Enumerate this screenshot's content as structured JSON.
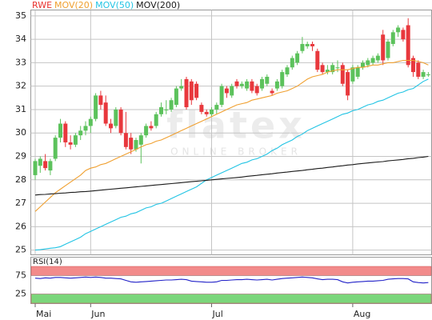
{
  "chart_data": [
    {
      "type": "candlestick",
      "watermark": {
        "title": "flatex",
        "subtitle": "ONLINE BROKER"
      },
      "categories": [
        "Mai",
        null,
        null,
        null,
        null,
        null,
        null,
        null,
        null,
        null,
        null,
        "Jun",
        null,
        null,
        null,
        null,
        null,
        null,
        null,
        null,
        null,
        null,
        null,
        null,
        null,
        null,
        null,
        null,
        null,
        null,
        null,
        null,
        null,
        null,
        null,
        "Jul",
        null,
        null,
        null,
        null,
        null,
        null,
        null,
        null,
        null,
        null,
        null,
        null,
        null,
        null,
        null,
        null,
        null,
        null,
        null,
        null,
        null,
        null,
        null,
        null,
        null,
        null,
        null,
        "Aug",
        null,
        null,
        null,
        null,
        null,
        null,
        null,
        null,
        null,
        null,
        null,
        null,
        null,
        null,
        null
      ],
      "candles": {
        "name": "RWE",
        "color": "#e8322d",
        "up_color": "#5cc25c",
        "down_color": "#e8383d",
        "open": [
          28.2,
          28.6,
          28.8,
          28.4,
          28.9,
          29.8,
          30.4,
          29.6,
          29.5,
          29.9,
          30.1,
          30.3,
          30.6,
          31.6,
          31.3,
          30.4,
          30.3,
          31.0,
          30.0,
          29.8,
          29.3,
          29.5,
          29.9,
          30.3,
          30.3,
          30.8,
          31.0,
          31.0,
          31.2,
          31.9,
          32.3,
          32.2,
          32.1,
          31.2,
          30.9,
          30.8,
          31.0,
          31.2,
          31.9,
          31.6,
          32.2,
          32.0,
          31.9,
          32.2,
          32.0,
          31.9,
          32.1,
          31.8,
          31.9,
          32.0,
          32.5,
          32.8,
          33.0,
          33.5,
          33.7,
          33.8,
          33.5,
          32.9,
          32.6,
          32.6,
          32.8,
          32.9,
          32.6,
          32.2,
          32.4,
          32.8,
          32.9,
          33.0,
          33.1,
          34.2,
          33.2,
          33.8,
          34.3,
          34.4,
          34.6,
          33.2,
          33.0,
          32.4,
          32.5
        ],
        "high": [
          28.9,
          29.0,
          29.1,
          28.9,
          29.9,
          30.6,
          30.5,
          29.9,
          30.0,
          30.3,
          30.5,
          30.7,
          31.7,
          31.8,
          31.6,
          30.6,
          31.1,
          31.1,
          30.9,
          30.0,
          29.8,
          30.0,
          30.4,
          30.5,
          30.9,
          31.3,
          31.4,
          31.5,
          32.0,
          32.3,
          32.4,
          32.3,
          32.2,
          31.3,
          31.0,
          31.1,
          31.3,
          32.1,
          32.0,
          32.1,
          32.3,
          32.2,
          32.3,
          32.3,
          32.1,
          32.4,
          32.5,
          31.9,
          32.3,
          32.7,
          32.9,
          33.3,
          33.5,
          34.1,
          33.9,
          33.9,
          33.6,
          33.0,
          32.9,
          33.0,
          33.1,
          33.0,
          32.7,
          32.9,
          32.9,
          33.1,
          33.2,
          33.3,
          33.4,
          34.4,
          34.0,
          34.4,
          34.6,
          34.5,
          34.9,
          33.3,
          33.1,
          32.7,
          32.6
        ],
        "low": [
          28.0,
          28.3,
          28.4,
          28.2,
          28.8,
          29.6,
          29.4,
          29.3,
          29.4,
          29.7,
          29.9,
          30.0,
          30.5,
          31.0,
          30.3,
          30.0,
          30.2,
          29.9,
          29.3,
          29.1,
          29.2,
          28.7,
          29.8,
          30.1,
          30.2,
          30.7,
          30.8,
          30.9,
          31.1,
          31.8,
          31.0,
          31.2,
          31.4,
          30.8,
          30.7,
          30.7,
          30.8,
          31.1,
          31.5,
          31.5,
          31.9,
          31.9,
          31.8,
          31.7,
          31.6,
          31.8,
          32.0,
          31.6,
          31.8,
          31.9,
          32.4,
          32.7,
          32.9,
          33.4,
          33.6,
          33.5,
          32.6,
          32.5,
          32.5,
          32.5,
          32.6,
          32.0,
          31.4,
          32.1,
          32.3,
          32.7,
          32.8,
          32.9,
          33.0,
          32.9,
          33.1,
          33.7,
          34.1,
          33.9,
          32.8,
          32.4,
          32.3,
          32.3,
          32.4
        ],
        "close": [
          28.8,
          28.9,
          28.5,
          28.8,
          29.8,
          30.4,
          29.6,
          29.5,
          29.9,
          30.1,
          30.3,
          30.6,
          31.6,
          31.2,
          30.4,
          30.2,
          31.0,
          30.0,
          29.4,
          29.3,
          29.7,
          29.9,
          30.3,
          30.2,
          30.8,
          31.1,
          31.0,
          31.4,
          31.9,
          32.0,
          31.1,
          31.4,
          31.5,
          30.9,
          30.8,
          31.0,
          31.2,
          32.0,
          31.7,
          32.0,
          32.0,
          32.1,
          32.2,
          31.8,
          31.7,
          32.3,
          32.4,
          31.7,
          32.2,
          32.6,
          32.8,
          33.2,
          33.4,
          33.8,
          33.8,
          33.7,
          32.7,
          32.6,
          32.7,
          32.9,
          32.8,
          32.1,
          31.6,
          32.8,
          32.8,
          33.0,
          33.1,
          33.2,
          33.3,
          33.1,
          33.9,
          34.3,
          34.5,
          34.0,
          32.9,
          32.6,
          32.4,
          32.6,
          32.5
        ]
      },
      "series": [
        {
          "name": "MOV(20)",
          "color": "#f0a030",
          "values": [
            26.65,
            26.85,
            27.05,
            27.25,
            27.45,
            27.6,
            27.75,
            27.9,
            28.05,
            28.2,
            28.4,
            28.5,
            28.55,
            28.65,
            28.7,
            28.8,
            28.9,
            29.0,
            29.1,
            29.2,
            29.3,
            29.4,
            29.5,
            29.55,
            29.65,
            29.7,
            29.8,
            29.9,
            30.0,
            30.1,
            30.2,
            30.3,
            30.4,
            30.5,
            30.6,
            30.7,
            30.8,
            30.9,
            31.0,
            31.1,
            31.2,
            31.25,
            31.3,
            31.4,
            31.45,
            31.5,
            31.55,
            31.6,
            31.7,
            31.75,
            31.8,
            31.9,
            32.0,
            32.15,
            32.3,
            32.4,
            32.45,
            32.5,
            32.6,
            32.65,
            32.7,
            32.7,
            32.7,
            32.75,
            32.8,
            32.8,
            32.85,
            32.9,
            32.9,
            32.95,
            33.0,
            33.0,
            33.05,
            33.1,
            33.1,
            33.1,
            33.05,
            33.0,
            32.9
          ]
        },
        {
          "name": "MOV(50)",
          "color": "#22c4e4",
          "values": [
            25.0,
            25.02,
            25.05,
            25.08,
            25.1,
            25.15,
            25.25,
            25.35,
            25.45,
            25.55,
            25.7,
            25.8,
            25.9,
            26.0,
            26.1,
            26.2,
            26.3,
            26.4,
            26.45,
            26.55,
            26.6,
            26.7,
            26.8,
            26.85,
            26.95,
            27.0,
            27.1,
            27.2,
            27.3,
            27.4,
            27.5,
            27.6,
            27.7,
            27.85,
            28.0,
            28.1,
            28.2,
            28.3,
            28.4,
            28.5,
            28.6,
            28.7,
            28.75,
            28.85,
            28.9,
            29.0,
            29.1,
            29.25,
            29.35,
            29.5,
            29.6,
            29.7,
            29.85,
            29.95,
            30.1,
            30.2,
            30.3,
            30.4,
            30.5,
            30.6,
            30.7,
            30.8,
            30.85,
            30.95,
            31.0,
            31.1,
            31.2,
            31.25,
            31.35,
            31.4,
            31.5,
            31.6,
            31.7,
            31.75,
            31.85,
            31.9,
            32.05,
            32.2,
            32.3
          ]
        },
        {
          "name": "MOV(200)",
          "color": "#1a1a1a",
          "values": [
            27.35,
            27.37,
            27.38,
            27.4,
            27.41,
            27.43,
            27.44,
            27.46,
            27.47,
            27.49,
            27.5,
            27.52,
            27.54,
            27.56,
            27.58,
            27.6,
            27.62,
            27.64,
            27.66,
            27.68,
            27.7,
            27.72,
            27.74,
            27.76,
            27.78,
            27.8,
            27.82,
            27.84,
            27.86,
            27.88,
            27.9,
            27.92,
            27.94,
            27.96,
            27.98,
            28.0,
            28.02,
            28.04,
            28.06,
            28.08,
            28.1,
            28.12,
            28.15,
            28.17,
            28.19,
            28.22,
            28.24,
            28.26,
            28.29,
            28.31,
            28.33,
            28.36,
            28.38,
            28.4,
            28.43,
            28.45,
            28.48,
            28.5,
            28.53,
            28.55,
            28.58,
            28.6,
            28.63,
            28.65,
            28.68,
            28.7,
            28.72,
            28.74,
            28.76,
            28.78,
            28.81,
            28.83,
            28.85,
            28.87,
            28.9,
            28.92,
            28.95,
            28.97,
            29.0
          ]
        }
      ],
      "ylim": [
        24.8,
        35.25
      ],
      "yticks": [
        25,
        26,
        27,
        28,
        29,
        30,
        31,
        32,
        33,
        34,
        35
      ],
      "grid": true
    },
    {
      "type": "line",
      "label": "RSI(14)",
      "series": [
        {
          "color": "#2222c8",
          "values": [
            68,
            67,
            69,
            68,
            70,
            70,
            69,
            68,
            69,
            70,
            71,
            70,
            71,
            70,
            68,
            68,
            67,
            66,
            62,
            58,
            57,
            58,
            59,
            60,
            61,
            62,
            63,
            63,
            64,
            65,
            64,
            60,
            59,
            58,
            57,
            57,
            58,
            62,
            62,
            63,
            64,
            64,
            65,
            64,
            63,
            64,
            65,
            63,
            65,
            67,
            68,
            69,
            70,
            71,
            70,
            69,
            66,
            64,
            65,
            65,
            64,
            58,
            55,
            57,
            58,
            59,
            60,
            60,
            61,
            62,
            65,
            66,
            67,
            67,
            66,
            58,
            56,
            55,
            56
          ]
        }
      ],
      "bands": [
        {
          "from": 75,
          "to": 100,
          "color": "#f28b8b"
        },
        {
          "from": 0,
          "to": 25,
          "color": "#7bd67b"
        }
      ],
      "ylim": [
        0,
        100
      ],
      "yticks": [
        25,
        75
      ]
    }
  ]
}
